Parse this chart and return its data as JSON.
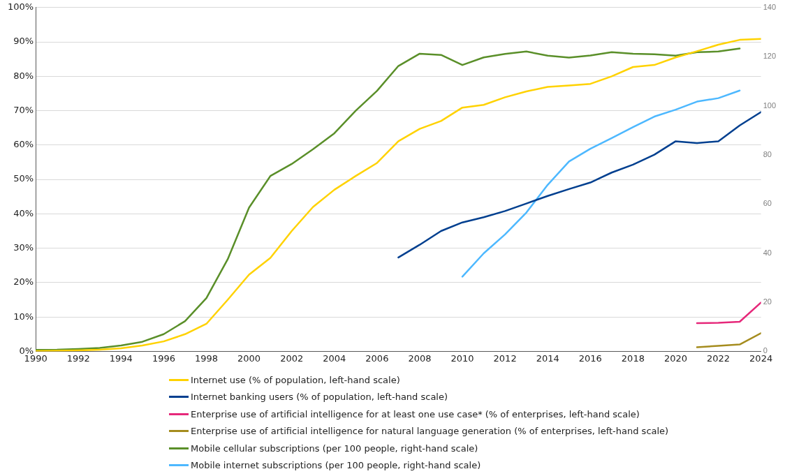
{
  "chart_data": {
    "type": "line",
    "x": [
      1990,
      1991,
      1992,
      1993,
      1994,
      1995,
      1996,
      1997,
      1998,
      1999,
      2000,
      2001,
      2002,
      2003,
      2004,
      2005,
      2006,
      2007,
      2008,
      2009,
      2010,
      2011,
      2012,
      2013,
      2014,
      2015,
      2016,
      2017,
      2018,
      2019,
      2020,
      2021,
      2022,
      2023,
      2024
    ],
    "series": [
      {
        "name": "Internet use (% of population, left-hand scale)",
        "color": "#ffd200",
        "values": [
          0.1,
          0.2,
          0.3,
          0.5,
          0.9,
          1.7,
          2.9,
          5,
          8,
          15,
          22.3,
          27.2,
          35,
          42,
          47,
          51,
          54.8,
          61.1,
          64.7,
          67,
          70.9,
          71.7,
          73.9,
          75.6,
          76.9,
          77.3,
          77.8,
          80,
          82.7,
          83.3,
          85.5,
          87.3,
          89.2,
          90.6,
          90.9
        ]
      },
      {
        "name": "Internet banking users (% of population, left-hand scale)",
        "color": "#003f8f",
        "values": [
          null,
          null,
          null,
          null,
          null,
          null,
          null,
          null,
          null,
          null,
          null,
          null,
          null,
          null,
          null,
          null,
          null,
          27.3,
          31,
          35,
          37.5,
          39,
          40.8,
          43,
          45.2,
          47.2,
          49.1,
          52,
          54.3,
          57.2,
          61.1,
          60.6,
          61.1,
          65.7,
          69.6
        ]
      },
      {
        "name": "Enterprise use of artificial intelligence for at least one use case* (% of enterprises, left-hand scale)",
        "color": "#e6287a",
        "values": [
          null,
          null,
          null,
          null,
          null,
          null,
          null,
          null,
          null,
          null,
          null,
          null,
          null,
          null,
          null,
          null,
          null,
          null,
          null,
          null,
          null,
          null,
          null,
          null,
          null,
          null,
          null,
          null,
          null,
          null,
          null,
          8.2,
          8.3,
          8.6,
          14.2
        ]
      },
      {
        "name": "Enterprise use of artificial intelligence for natural language generation (% of enterprises, left-hand scale)",
        "color": "#a58c1e",
        "values": [
          null,
          null,
          null,
          null,
          null,
          null,
          null,
          null,
          null,
          null,
          null,
          null,
          null,
          null,
          null,
          null,
          null,
          null,
          null,
          null,
          null,
          null,
          null,
          null,
          null,
          null,
          null,
          null,
          null,
          null,
          null,
          1.2,
          1.6,
          2,
          5.3
        ]
      },
      {
        "name": "Mobile cellular subscriptions (per 100 people, right-hand scale)",
        "color": "#5a8f29",
        "axis": "y2",
        "values": [
          0.6,
          0.7,
          1,
          1.4,
          2.4,
          3.9,
          7,
          12.3,
          21.7,
          37.5,
          58.5,
          71.4,
          76.3,
          82.3,
          88.8,
          98,
          106.1,
          116.2,
          121.2,
          120.7,
          116.6,
          119.7,
          121.1,
          122.1,
          120.4,
          119.6,
          120.5,
          121.8,
          121.2,
          121,
          120.4,
          121.8,
          122.1,
          123.3,
          null
        ]
      },
      {
        "name": "Mobile internet subscriptions (per 100 people, right-hand scale)",
        "color": "#4db8ff",
        "axis": "y2",
        "values": [
          null,
          null,
          null,
          null,
          null,
          null,
          null,
          null,
          null,
          null,
          null,
          null,
          null,
          null,
          null,
          null,
          null,
          null,
          null,
          null,
          30.4,
          39.9,
          47.6,
          56.5,
          67.8,
          77.3,
          82.5,
          86.8,
          91.3,
          95.6,
          98.4,
          101.7,
          103.1,
          106.2,
          null
        ]
      }
    ],
    "xlim": [
      1990,
      2024
    ],
    "xticks": [
      1990,
      1992,
      1994,
      1996,
      1998,
      2000,
      2002,
      2004,
      2006,
      2008,
      2010,
      2012,
      2014,
      2016,
      2018,
      2020,
      2022,
      2024
    ],
    "ylim": [
      0,
      100
    ],
    "yticks": [
      {
        "value": 0,
        "label": "0%"
      },
      {
        "value": 10,
        "label": "10%"
      },
      {
        "value": 20,
        "label": "20%"
      },
      {
        "value": 30,
        "label": "30%"
      },
      {
        "value": 40,
        "label": "40%"
      },
      {
        "value": 50,
        "label": "50%"
      },
      {
        "value": 60,
        "label": "60%"
      },
      {
        "value": 70,
        "label": "70%"
      },
      {
        "value": 80,
        "label": "80%"
      },
      {
        "value": 90,
        "label": "90%"
      },
      {
        "value": 100,
        "label": "100%"
      }
    ],
    "y2lim": [
      0,
      140
    ],
    "y2ticks": [
      0,
      20,
      40,
      60,
      80,
      100,
      120,
      140
    ],
    "grid": "y",
    "legend": "bottom",
    "marker": "none",
    "line_style": "solid"
  }
}
